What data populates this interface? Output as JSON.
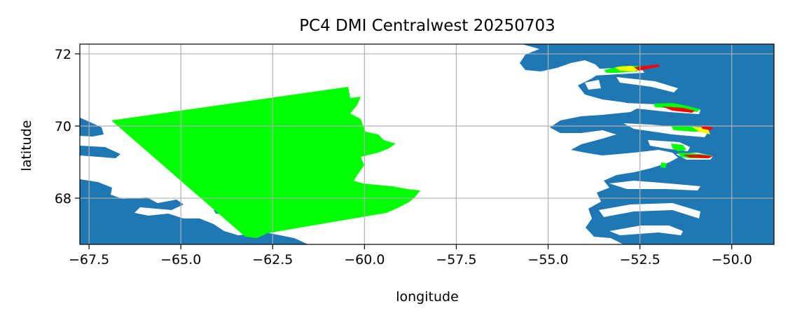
{
  "title": "PC4 DMI Centralwest 20250703",
  "xlabel": "longitude",
  "ylabel": "latitude",
  "xlim": [
    -67.75,
    -48.85
  ],
  "ylim": [
    66.72,
    72.27
  ],
  "x_ticks": [
    {
      "value": -67.5,
      "label": "−67.5"
    },
    {
      "value": -65.0,
      "label": "−65.0"
    },
    {
      "value": -62.5,
      "label": "−62.5"
    },
    {
      "value": -60.0,
      "label": "−60.0"
    },
    {
      "value": -57.5,
      "label": "−57.5"
    },
    {
      "value": -55.0,
      "label": "−55.0"
    },
    {
      "value": -52.5,
      "label": "−52.5"
    },
    {
      "value": -50.0,
      "label": "−50.0"
    }
  ],
  "y_ticks": [
    {
      "value": 68,
      "label": "68"
    },
    {
      "value": 70,
      "label": "70"
    },
    {
      "value": 72,
      "label": "72"
    }
  ],
  "grid": true,
  "colors": {
    "land": "#1f77b4",
    "sea": "#ffffff",
    "ice_low": "#00ff00",
    "ice_mid": "#ffff00",
    "ice_high": "#ff0000",
    "grid": "#b0b0b0"
  }
}
